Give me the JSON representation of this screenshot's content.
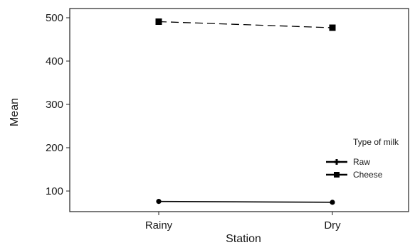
{
  "chart_data": {
    "type": "line",
    "title": "",
    "xlabel": "Station",
    "ylabel": "Mean",
    "categories": [
      "Rainy",
      "Dry"
    ],
    "ylim": [
      50,
      520
    ],
    "yticks": [
      100,
      200,
      300,
      400,
      500
    ],
    "grid": false,
    "legend": {
      "title": "Type of milk",
      "position": "right"
    },
    "series": [
      {
        "name": "Raw",
        "values": [
          76,
          74
        ],
        "line_style": "solid",
        "marker": "circle",
        "color": "#000000"
      },
      {
        "name": "Cheese",
        "values": [
          491,
          477
        ],
        "line_style": "dashed",
        "marker": "square",
        "color": "#000000"
      }
    ]
  }
}
